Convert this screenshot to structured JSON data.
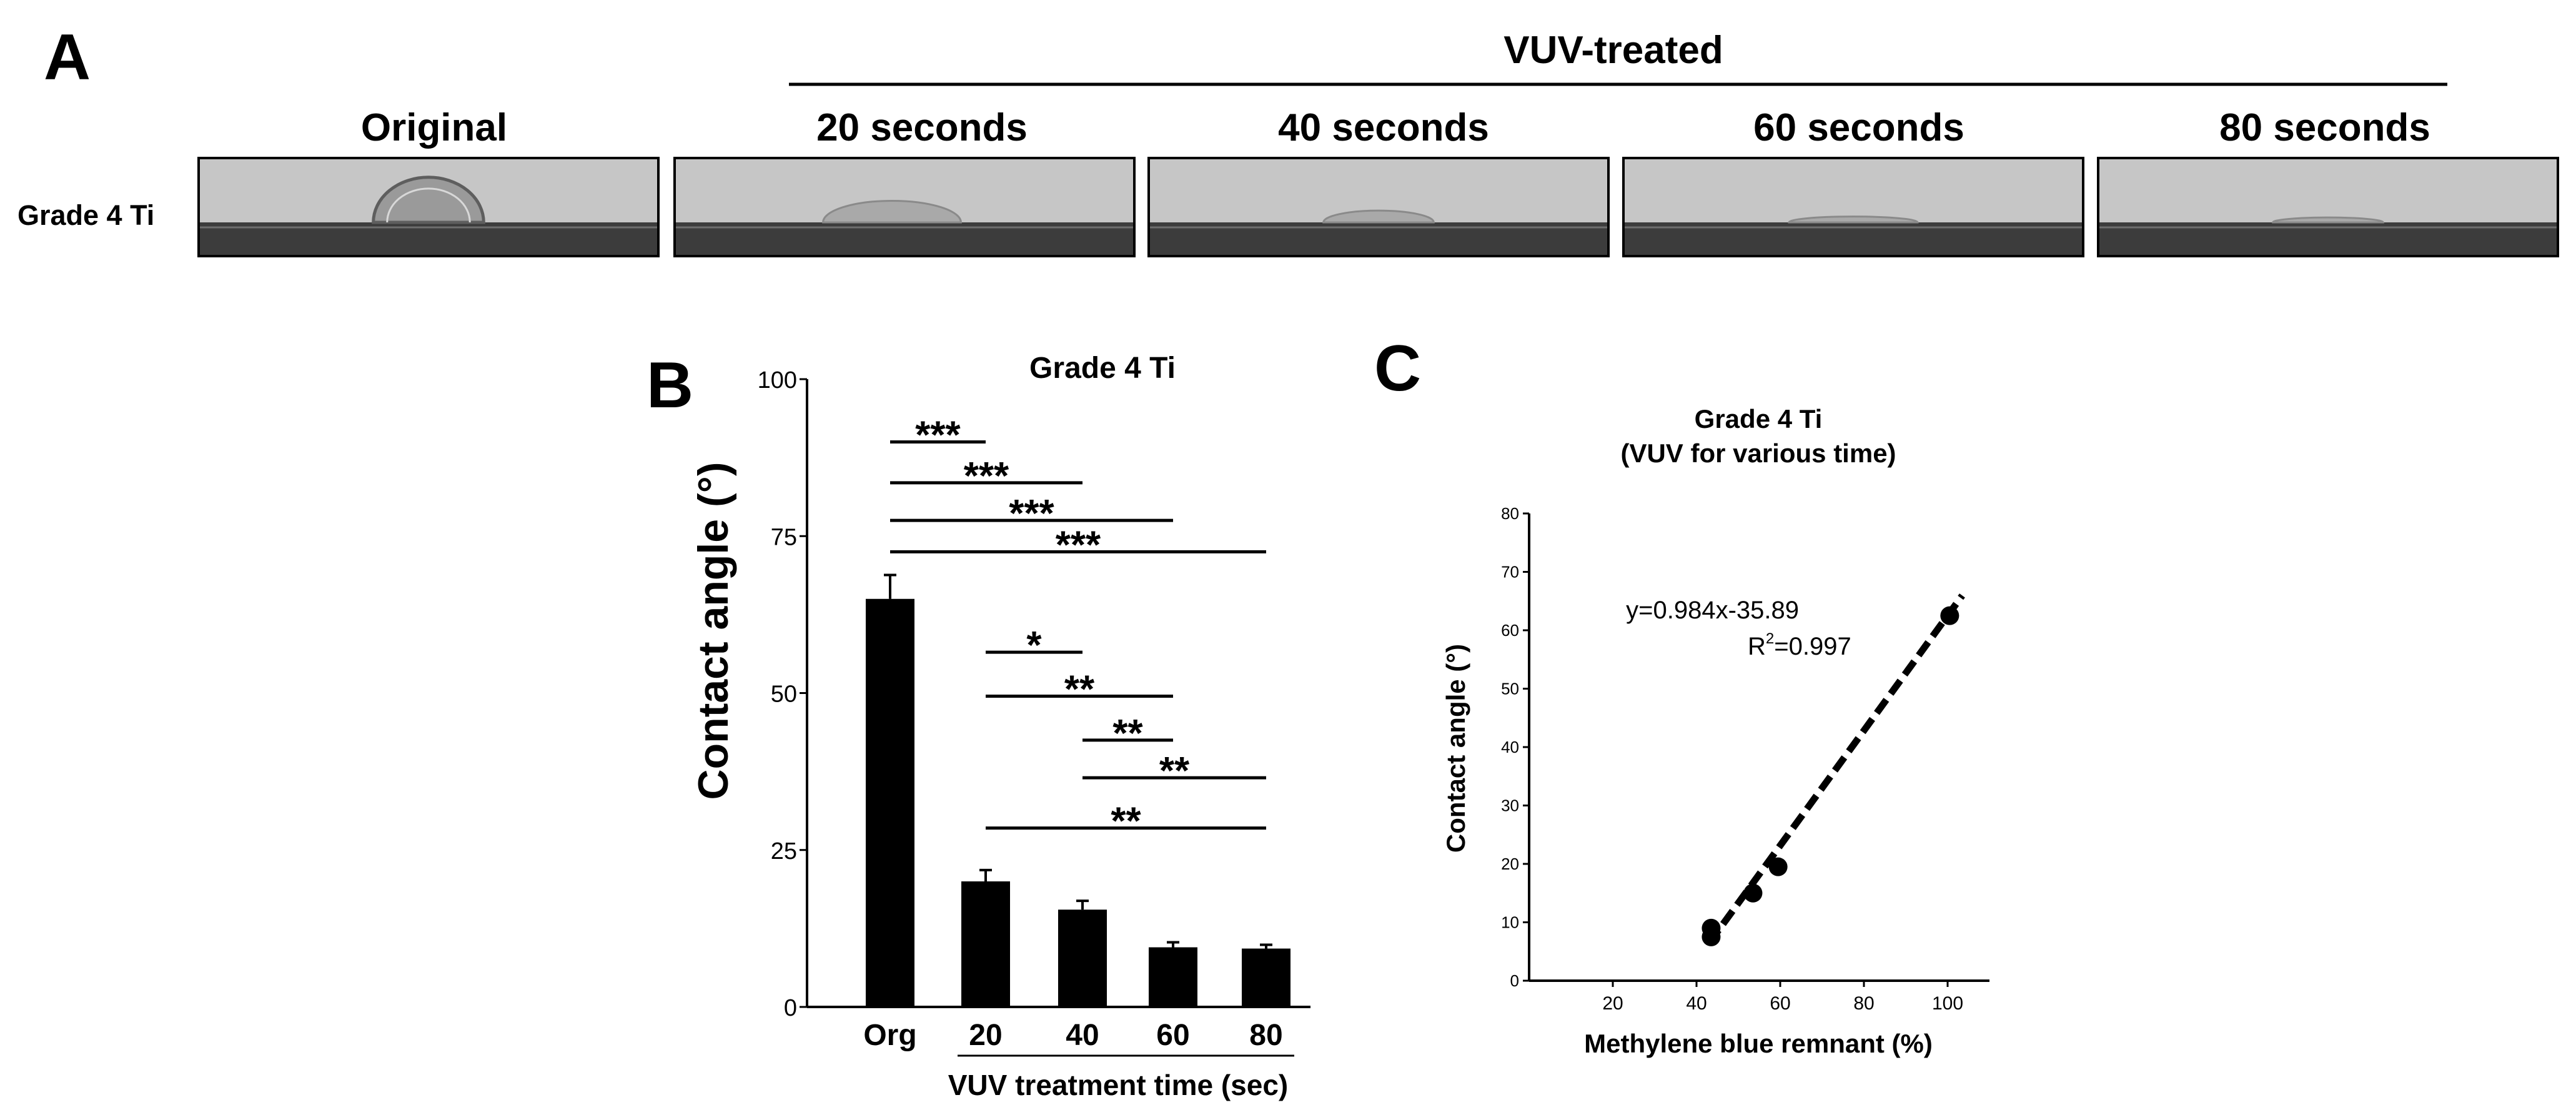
{
  "panel_a": {
    "letter": "A",
    "group_label": "VUV-treated",
    "row_label": "Grade 4 Ti",
    "columns": [
      {
        "label": "Original",
        "drop": {
          "width_rel": 0.24,
          "height_rel": 0.46,
          "outlined": true
        }
      },
      {
        "label": "20 seconds",
        "drop": {
          "width_rel": 0.3,
          "height_rel": 0.22,
          "outlined": false
        }
      },
      {
        "label": "40 seconds",
        "drop": {
          "width_rel": 0.24,
          "height_rel": 0.12,
          "outlined": false
        }
      },
      {
        "label": "60 seconds",
        "drop": {
          "width_rel": 0.28,
          "height_rel": 0.06,
          "outlined": false
        }
      },
      {
        "label": "80 seconds",
        "drop": {
          "width_rel": 0.24,
          "height_rel": 0.05,
          "outlined": false
        }
      }
    ]
  },
  "panel_b": {
    "letter": "B"
  },
  "panel_c": {
    "letter": "C"
  },
  "colors": {
    "bar": "#000000",
    "axis": "#000000",
    "photo_bg": "#c6c6c6",
    "photo_surface": "#3c3c3c"
  },
  "chart_data": [
    {
      "id": "B",
      "type": "bar",
      "title": "Grade 4 Ti",
      "ylabel": "Contact angle (°)",
      "xlabel": "VUV treatment time (sec)",
      "ylim": [
        0,
        100
      ],
      "yticks": [
        0,
        25,
        50,
        75,
        100
      ],
      "categories": [
        "Org",
        "20",
        "40",
        "60",
        "80"
      ],
      "underlined_categories": [
        "20",
        "40",
        "60",
        "80"
      ],
      "values": [
        65,
        20,
        15.5,
        9.5,
        9.3
      ],
      "errors": [
        3.8,
        1.8,
        1.4,
        0.8,
        0.6
      ],
      "significance": [
        {
          "from": "Org",
          "to": "20",
          "label": "***",
          "y": 90
        },
        {
          "from": "Org",
          "to": "40",
          "label": "***",
          "y": 83.5
        },
        {
          "from": "Org",
          "to": "60",
          "label": "***",
          "y": 77.5
        },
        {
          "from": "Org",
          "to": "80",
          "label": "***",
          "y": 72.5
        },
        {
          "from": "20",
          "to": "40",
          "label": "*",
          "y": 56.5
        },
        {
          "from": "20",
          "to": "60",
          "label": "**",
          "y": 49.5
        },
        {
          "from": "40",
          "to": "60",
          "label": "**",
          "y": 42.5
        },
        {
          "from": "40",
          "to": "80",
          "label": "**",
          "y": 36.5
        },
        {
          "from": "20",
          "to": "80",
          "label": "**",
          "y": 28.5
        }
      ]
    },
    {
      "id": "C",
      "type": "scatter",
      "title": "Grade 4 Ti",
      "subtitle": "(VUV for various time)",
      "xlabel": "Methylene blue remnant (%)",
      "ylabel": "Contact angle (°)",
      "xlim": [
        0,
        110
      ],
      "ylim": [
        0,
        80
      ],
      "xticks": [
        20,
        40,
        60,
        80,
        100
      ],
      "yticks": [
        0,
        10,
        20,
        30,
        40,
        50,
        60,
        70,
        80
      ],
      "x": [
        43.5,
        43.5,
        53.5,
        59.5,
        100.5
      ],
      "y": [
        7.5,
        9,
        15,
        19.5,
        62.5
      ],
      "fit": {
        "slope": 0.984,
        "intercept": -35.89,
        "x_from": 43,
        "x_to": 103.5
      },
      "equation": "y=0.984x-35.89",
      "r2_prefix": "R",
      "r2_sup": "2",
      "r2_suffix": "=0.997"
    }
  ]
}
